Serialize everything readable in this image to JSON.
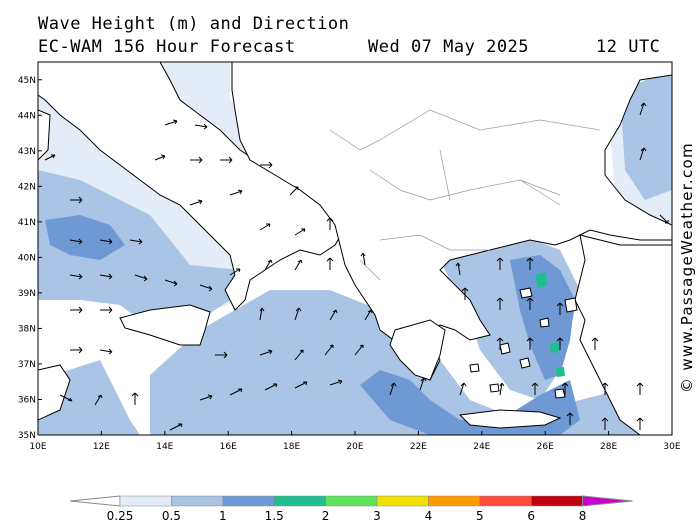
{
  "header": {
    "title": "Wave Height (m) and Direction",
    "model": "EC-WAM 156 Hour Forecast",
    "date": "Wed 07 May 2025",
    "time": "12 UTC"
  },
  "credit": "© www.PassageWeather.com",
  "map": {
    "lon_ticks": [
      "10E",
      "12E",
      "14E",
      "16E",
      "18E",
      "20E",
      "22E",
      "24E",
      "26E",
      "28E",
      "30E"
    ],
    "lat_ticks": [
      "35N",
      "36N",
      "37N",
      "38N",
      "39N",
      "40N",
      "41N",
      "42N",
      "43N",
      "44N",
      "45N"
    ],
    "extent": {
      "lon_min": 10,
      "lon_max": 30,
      "lat_min": 35,
      "lat_max": 45.5
    }
  },
  "legend": {
    "labels": [
      "0.25",
      "0.5",
      "1",
      "1.5",
      "2",
      "3",
      "4",
      "5",
      "6",
      "8"
    ],
    "colors": [
      "#e3ecf7",
      "#a9c4e4",
      "#6f99d4",
      "#1fbf8f",
      "#5fe35a",
      "#f0e000",
      "#ff9a00",
      "#ff4c3c",
      "#c00010",
      "#cc00cc"
    ]
  },
  "colors": {
    "sea": "#ffffff",
    "land": "#ffffff",
    "band1": "#e3ecf7",
    "band2": "#a9c4e4",
    "band3": "#6f99d4",
    "band4": "#1fbf8f"
  }
}
